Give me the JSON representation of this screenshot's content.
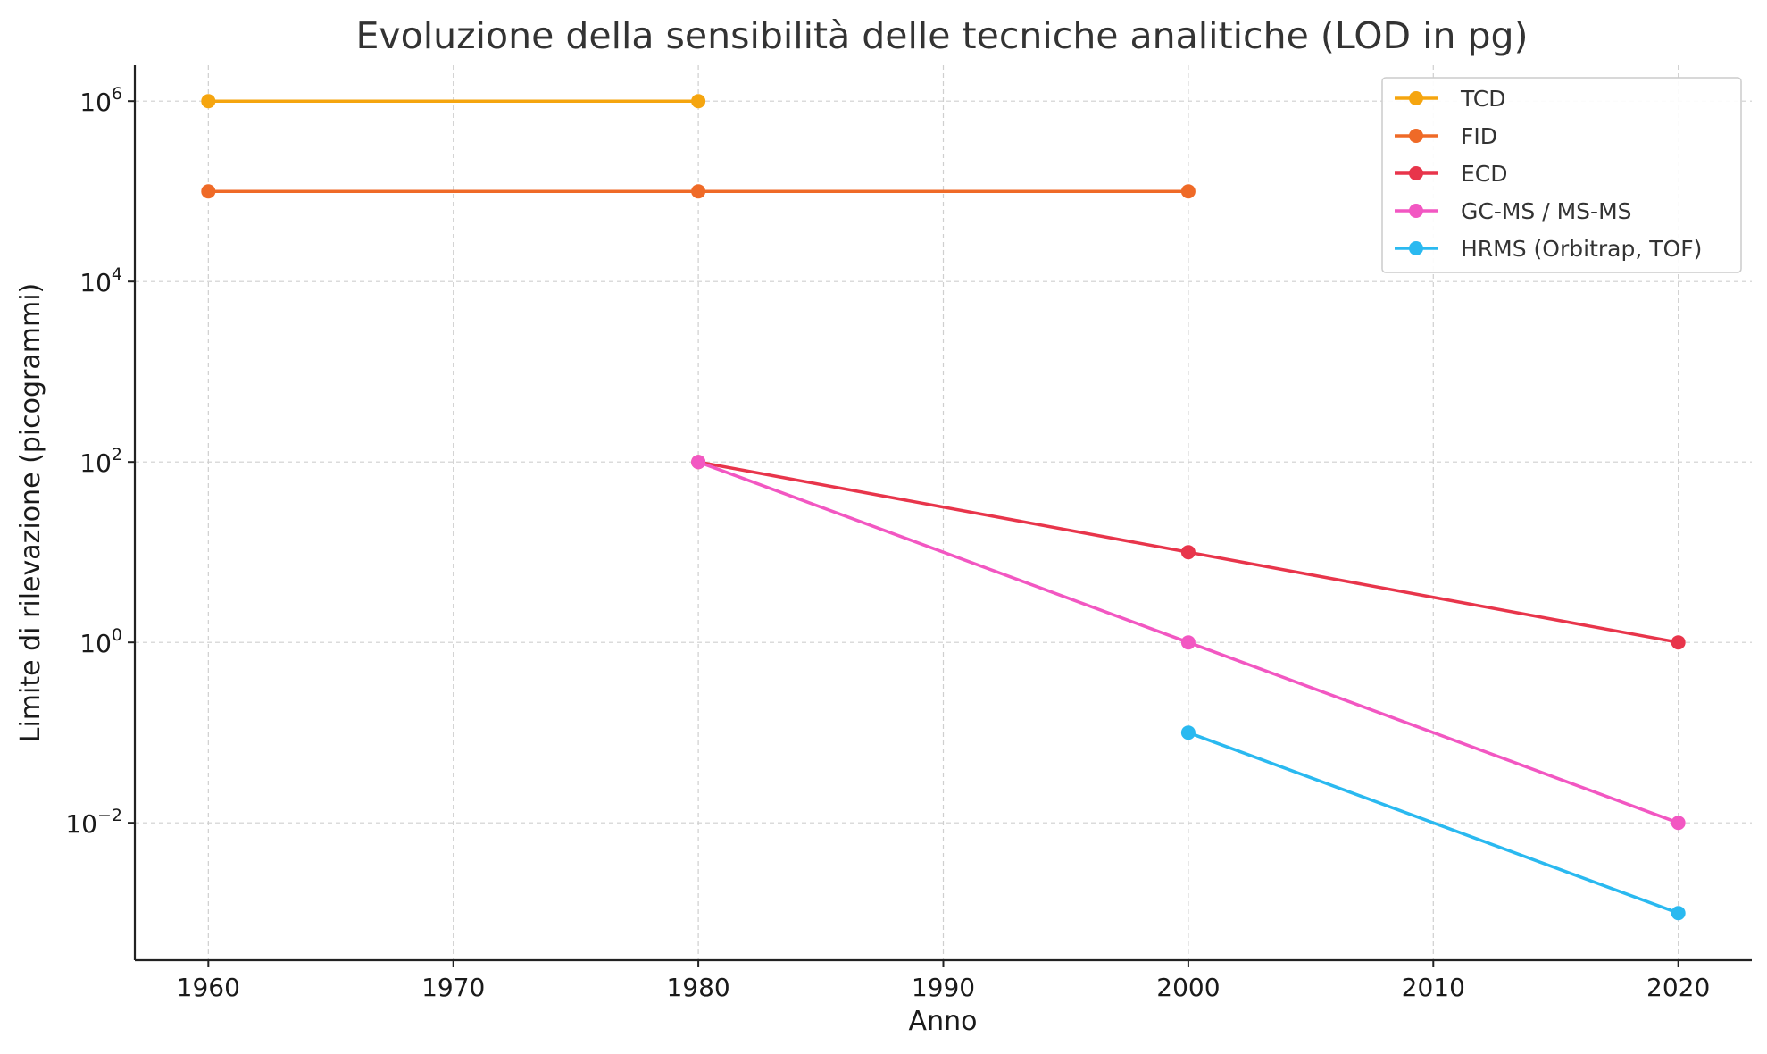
{
  "chart_data": {
    "type": "line",
    "title": "Evoluzione della sensibilità delle tecniche analitiche (LOD in pg)",
    "xlabel": "Anno",
    "ylabel": "Limite di rilevazione (picogrammi)",
    "xlim": [
      1957,
      2023
    ],
    "ylim": [
      0.0003,
      2500000
    ],
    "yscale": "log",
    "grid": true,
    "legend_position": "top-right",
    "x_ticks": [
      1960,
      1970,
      1980,
      1990,
      2000,
      2010,
      2020
    ],
    "y_ticks": [
      {
        "value": 0.01,
        "base": "10",
        "exp": "−2"
      },
      {
        "value": 1,
        "base": "10",
        "exp": "0"
      },
      {
        "value": 100,
        "base": "10",
        "exp": "2"
      },
      {
        "value": 10000,
        "base": "10",
        "exp": "4"
      },
      {
        "value": 1000000,
        "base": "10",
        "exp": "6"
      }
    ],
    "series": [
      {
        "name": "TCD",
        "color": "#f5a50f",
        "points": [
          [
            1960,
            1000000
          ],
          [
            1980,
            1000000
          ]
        ]
      },
      {
        "name": "FID",
        "color": "#ef6a27",
        "points": [
          [
            1960,
            100000
          ],
          [
            1980,
            100000
          ],
          [
            2000,
            100000
          ]
        ]
      },
      {
        "name": "ECD",
        "color": "#e8354b",
        "points": [
          [
            1980,
            100
          ],
          [
            2000,
            10
          ],
          [
            2020,
            1
          ]
        ]
      },
      {
        "name": "GC-MS / MS-MS",
        "color": "#f257c2",
        "points": [
          [
            1980,
            100
          ],
          [
            2000,
            1
          ],
          [
            2020,
            0.01
          ]
        ]
      },
      {
        "name": "HRMS (Orbitrap, TOF)",
        "color": "#2ab9f0",
        "points": [
          [
            2000,
            0.1
          ],
          [
            2020,
            0.001
          ]
        ]
      }
    ]
  }
}
